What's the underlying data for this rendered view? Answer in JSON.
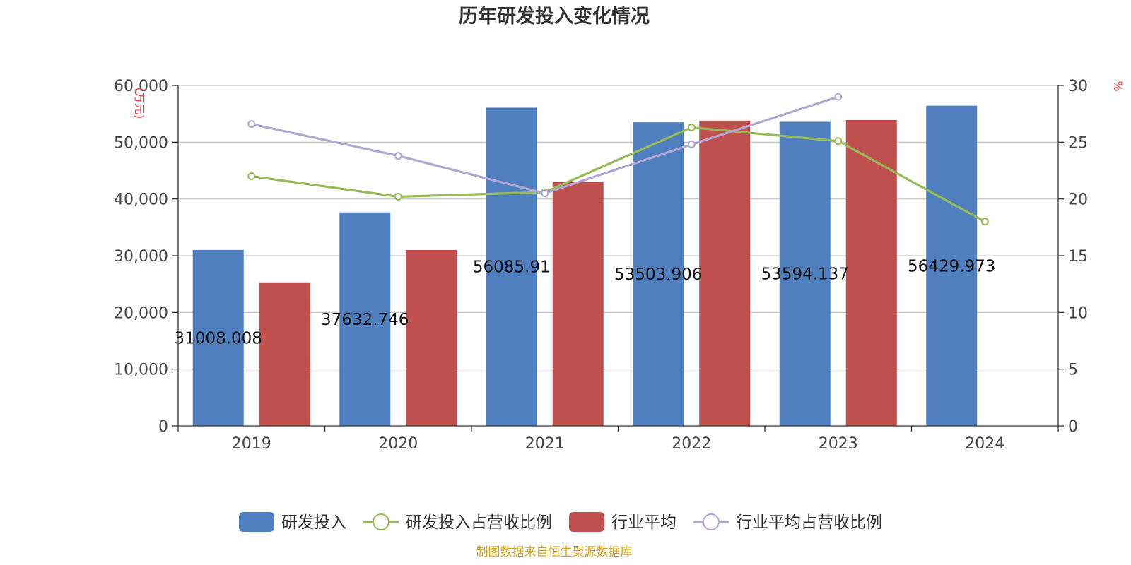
{
  "chart_data": {
    "type": "bar",
    "title": "历年研发投入变化情况",
    "categories": [
      "2019",
      "2020",
      "2021",
      "2022",
      "2023",
      "2024"
    ],
    "y_left": {
      "label": "(万元)",
      "min": 0,
      "max": 60000,
      "ticks": [
        "0",
        "10,000",
        "20,000",
        "30,000",
        "40,000",
        "50,000",
        "60,000"
      ],
      "tick_values": [
        0,
        10000,
        20000,
        30000,
        40000,
        50000,
        60000
      ]
    },
    "y_right": {
      "label": "%",
      "min": 0,
      "max": 30,
      "ticks": [
        "0",
        "5",
        "10",
        "15",
        "20",
        "25",
        "30"
      ],
      "tick_values": [
        0,
        5,
        10,
        15,
        20,
        25,
        30
      ]
    },
    "grid": true,
    "legend_position": "bottom-center",
    "series": [
      {
        "name": "研发投入",
        "kind": "bar",
        "axis": "left",
        "color": "#4f7fbf",
        "values": [
          31008.008,
          37632.746,
          56085.91,
          53503.906,
          53594.137,
          56429.973
        ],
        "labels": [
          "31008.008",
          "37632.746",
          "56085.91",
          "53503.906",
          "53594.137",
          "56429.973"
        ]
      },
      {
        "name": "研发投入占营收比例",
        "kind": "line",
        "axis": "right",
        "color": "#97bb56",
        "values": [
          22.0,
          20.2,
          20.6,
          26.3,
          25.1,
          18.0
        ]
      },
      {
        "name": "行业平均",
        "kind": "bar",
        "axis": "left",
        "color": "#c0504d",
        "values": [
          25300,
          31000,
          43000,
          53800,
          53900,
          null
        ]
      },
      {
        "name": "行业平均占营收比例",
        "kind": "line",
        "axis": "right",
        "color": "#b3a6d4",
        "values": [
          26.6,
          23.8,
          20.5,
          24.8,
          29.0,
          null
        ]
      }
    ]
  },
  "footer": {
    "source": "制图数据来自恒生聚源数据库",
    "color": "#d4a017"
  }
}
